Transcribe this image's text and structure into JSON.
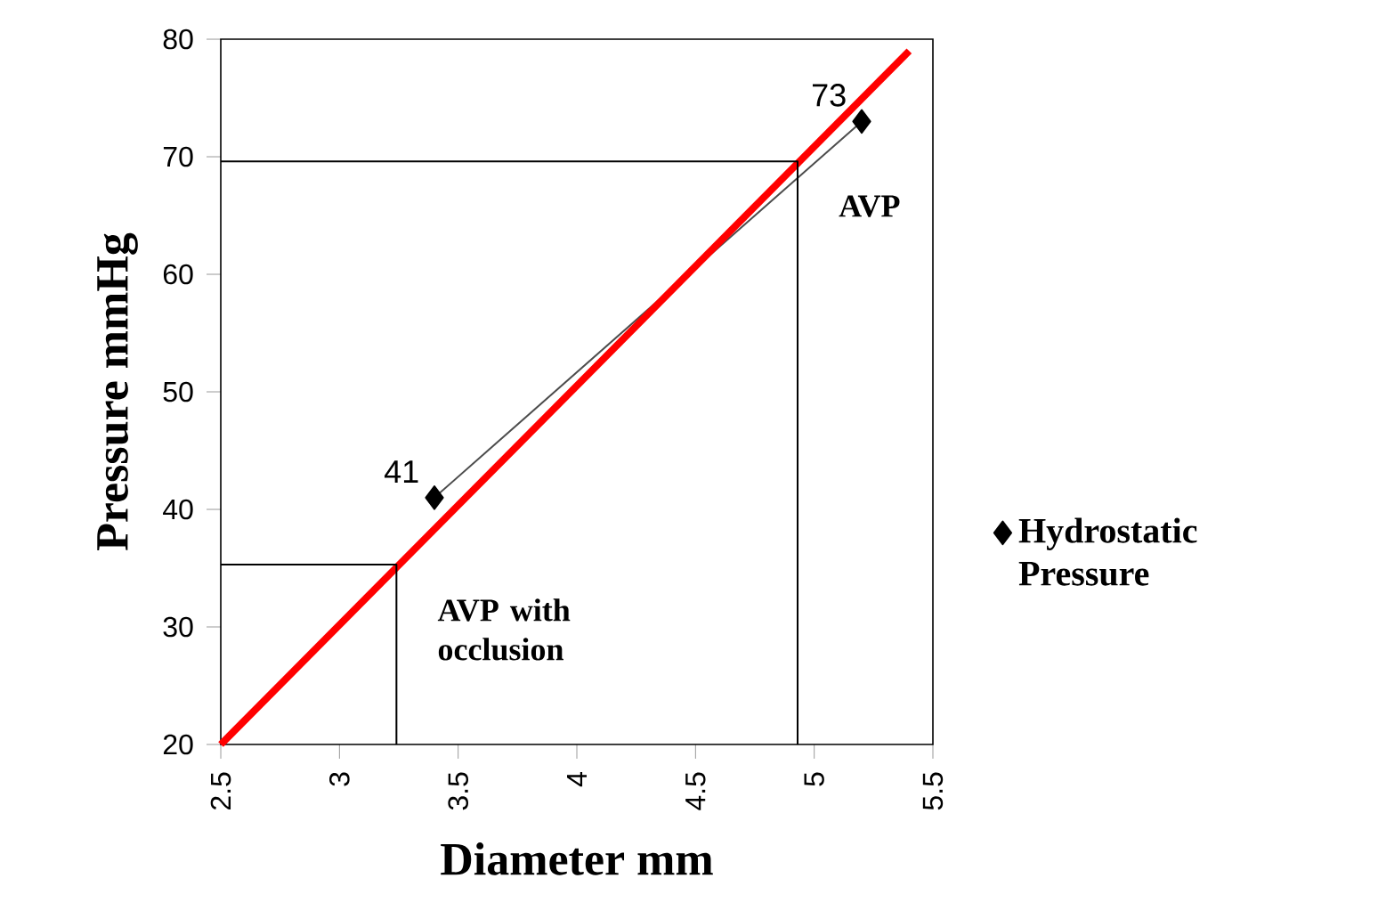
{
  "chart_data": {
    "type": "line",
    "xlabel": "Diameter mm",
    "ylabel": "Pressure mmHg",
    "xlim": [
      2.5,
      5.5
    ],
    "xticks": [
      2.5,
      3,
      3.5,
      4,
      4.5,
      5,
      5.5
    ],
    "ylim": [
      20,
      80
    ],
    "yticks": [
      20,
      30,
      40,
      50,
      60,
      70,
      80
    ],
    "legend": "right",
    "series": [
      {
        "name": "Hydrostatic Pressure",
        "color": "#000000",
        "marker": "diamond",
        "x": [
          3.4,
          5.2
        ],
        "values": [
          41,
          73
        ],
        "value_labels": [
          "41",
          "73"
        ]
      },
      {
        "color": "#ff0000",
        "marker": "none",
        "x": [
          2.5,
          5.4
        ],
        "values": [
          20,
          79
        ]
      },
      {
        "color": "#000000",
        "marker": "none",
        "x": [
          2.5,
          4.93,
          4.93
        ],
        "values": [
          69.6,
          69.6,
          20
        ]
      },
      {
        "color": "#000000",
        "marker": "none",
        "x": [
          2.5,
          3.24,
          3.24
        ],
        "values": [
          35.3,
          35.3,
          20
        ]
      }
    ],
    "annotations": [
      {
        "text": "AVP",
        "x": 4.93,
        "y": 69.6
      },
      {
        "text": "AVP with occlusion",
        "x": 3.24,
        "y": 35.3
      }
    ]
  }
}
